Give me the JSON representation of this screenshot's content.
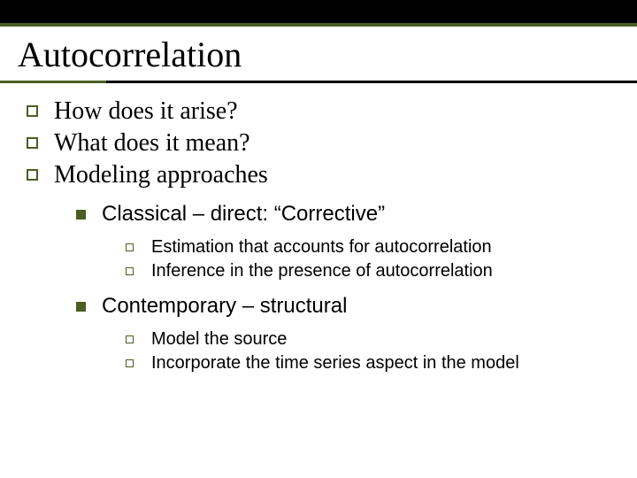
{
  "colors": {
    "accent": "#4a5d23",
    "top_bar": "#000000",
    "background": "#ffffff",
    "text": "#000000"
  },
  "typography": {
    "title_fontsize": 40,
    "lvl1_fontsize": 28,
    "lvl2_fontsize": 24,
    "lvl3_fontsize": 20,
    "title_family": "Times New Roman",
    "lvl1_family": "Times New Roman",
    "lvl2_family": "Arial",
    "lvl3_family": "Arial"
  },
  "title": "Autocorrelation",
  "lvl1": {
    "a": "How does it arise?",
    "b": "What does it mean?",
    "c": "Modeling approaches"
  },
  "lvl2": {
    "a": "Classical – direct: “Corrective”",
    "b": "Contemporary – structural"
  },
  "lvl3": {
    "a1": "Estimation that accounts for autocorrelation",
    "a2": "Inference in the presence of autocorrelation",
    "b1": "Model the source",
    "b2": "Incorporate the time series aspect in the model"
  }
}
